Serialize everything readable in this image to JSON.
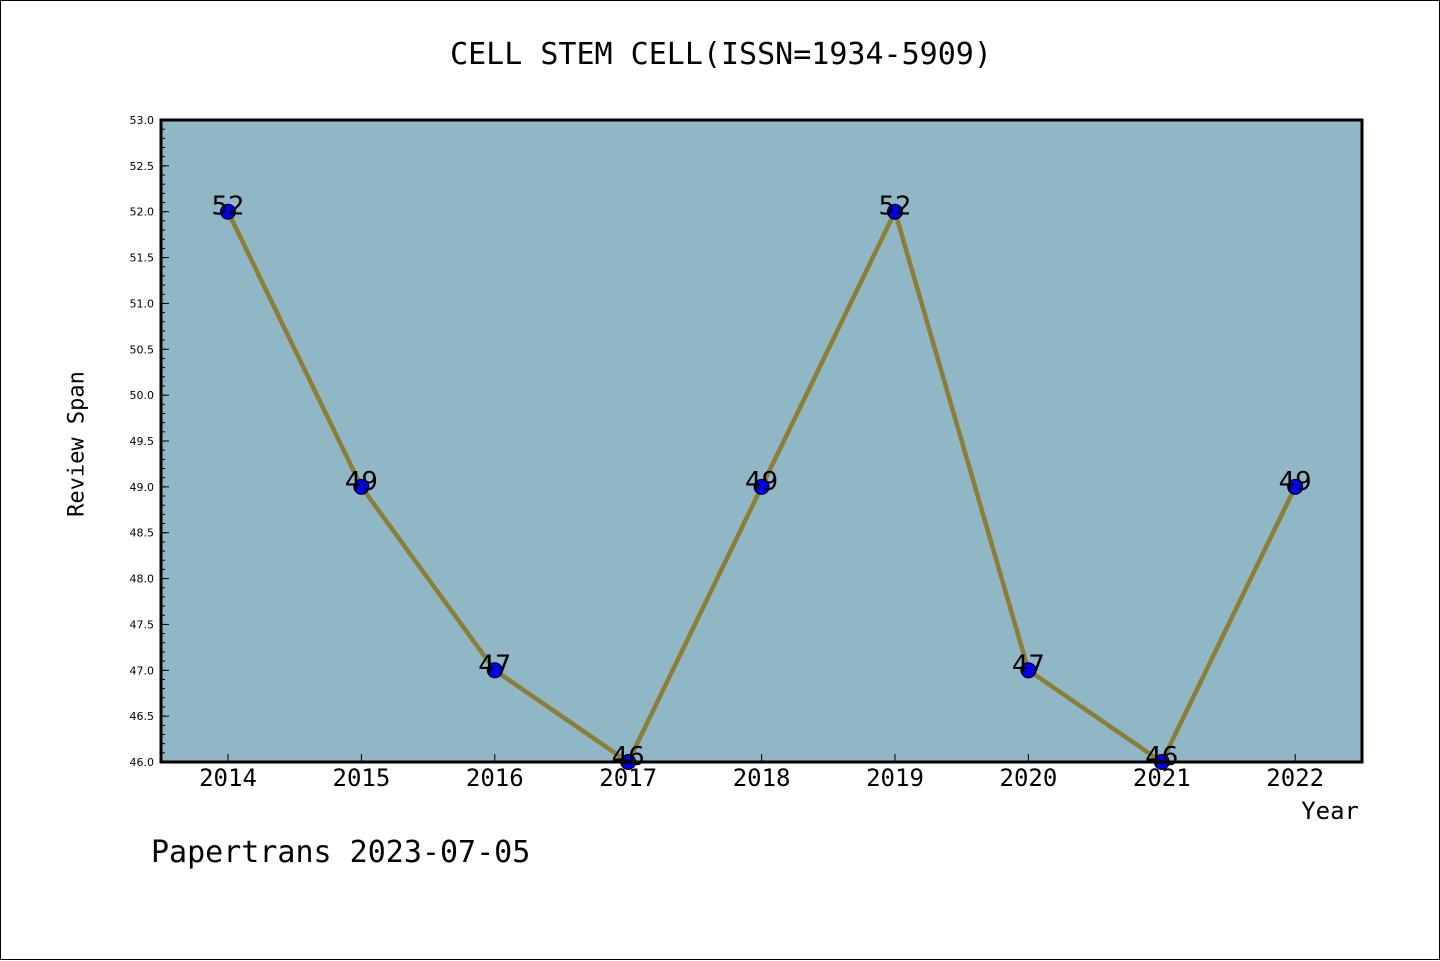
{
  "chart_data": {
    "type": "line",
    "title": "CELL STEM CELL(ISSN=1934-5909)",
    "xlabel": "Year",
    "ylabel": "Review Span",
    "categories": [
      "2014",
      "2015",
      "2016",
      "2017",
      "2018",
      "2019",
      "2020",
      "2021",
      "2022"
    ],
    "series": [
      {
        "values": [
          52,
          49,
          47,
          46,
          49,
          52,
          47,
          46,
          49
        ]
      }
    ],
    "data_labels": [
      "52",
      "49",
      "47",
      "46",
      "49",
      "52",
      "47",
      "46",
      "49"
    ],
    "ylim": [
      46.0,
      53.0
    ],
    "yticks": [
      "46.0",
      "46.5",
      "47.0",
      "47.5",
      "48.0",
      "48.5",
      "49.0",
      "49.5",
      "50.0",
      "50.5",
      "51.0",
      "51.5",
      "52.0",
      "52.5",
      "53.0"
    ],
    "grid": false,
    "colors": {
      "plot_background": "#8fb7c5",
      "line": "#8c7e36",
      "marker": "#0000ee"
    }
  },
  "footer": "Papertrans 2023-07-05"
}
